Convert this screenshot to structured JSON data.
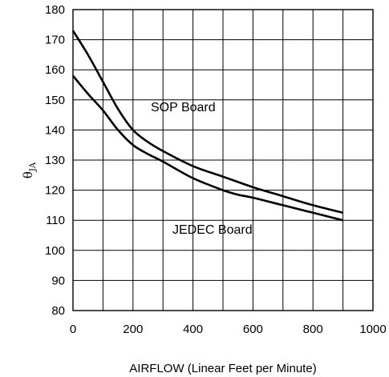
{
  "chart_data": {
    "type": "line",
    "title": "",
    "ylabel": {
      "symbol": "θ",
      "subscript": "JA"
    },
    "xlabel": "AIRFLOW (Linear Feet per Minute)",
    "xlim": [
      0,
      1000
    ],
    "ylim": [
      80,
      180
    ],
    "xticks": [
      0,
      200,
      400,
      600,
      800,
      1000
    ],
    "yticks": [
      80,
      90,
      100,
      110,
      120,
      130,
      140,
      150,
      160,
      170,
      180
    ],
    "grid": true,
    "series": [
      {
        "name": "SOP Board",
        "x": [
          0,
          50,
          100,
          150,
          200,
          250,
          300,
          400,
          500,
          600,
          700,
          800,
          900
        ],
        "y": [
          173,
          165,
          156,
          147,
          140,
          136,
          133,
          128,
          124.5,
          121,
          118,
          115,
          112.5
        ]
      },
      {
        "name": "JEDEC Board",
        "x": [
          0,
          50,
          100,
          150,
          200,
          250,
          300,
          400,
          500,
          550,
          600,
          700,
          800,
          900
        ],
        "y": [
          158,
          152,
          146.5,
          140,
          135,
          132,
          129.5,
          124,
          120,
          118.5,
          117.5,
          115,
          112.5,
          110
        ]
      }
    ]
  }
}
